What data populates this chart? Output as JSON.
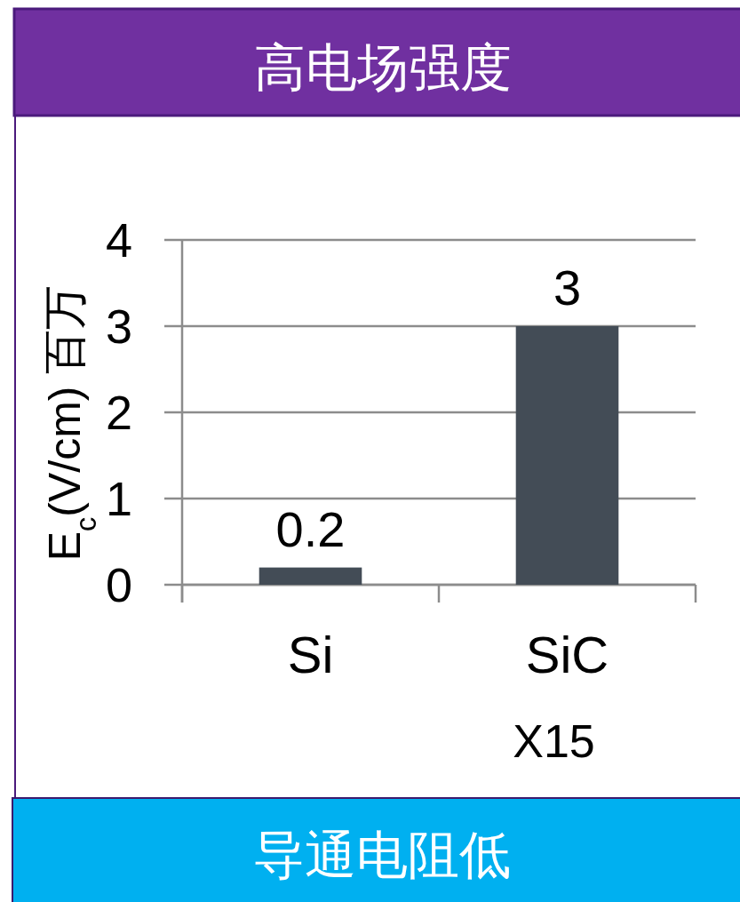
{
  "chart_data": {
    "type": "bar",
    "title": "高电场强度",
    "ylabel": "E$_{c}$(V/cm) 百万",
    "categories": [
      "Si",
      "SiC"
    ],
    "values": [
      0.2,
      3
    ],
    "color": "#434c56",
    "ylim": [
      0,
      4
    ],
    "yticks": [
      0,
      1,
      2,
      3,
      4
    ],
    "grid": "y",
    "data_labels": true,
    "annotations": [
      "X15",
      "导通电阻低"
    ]
  }
}
